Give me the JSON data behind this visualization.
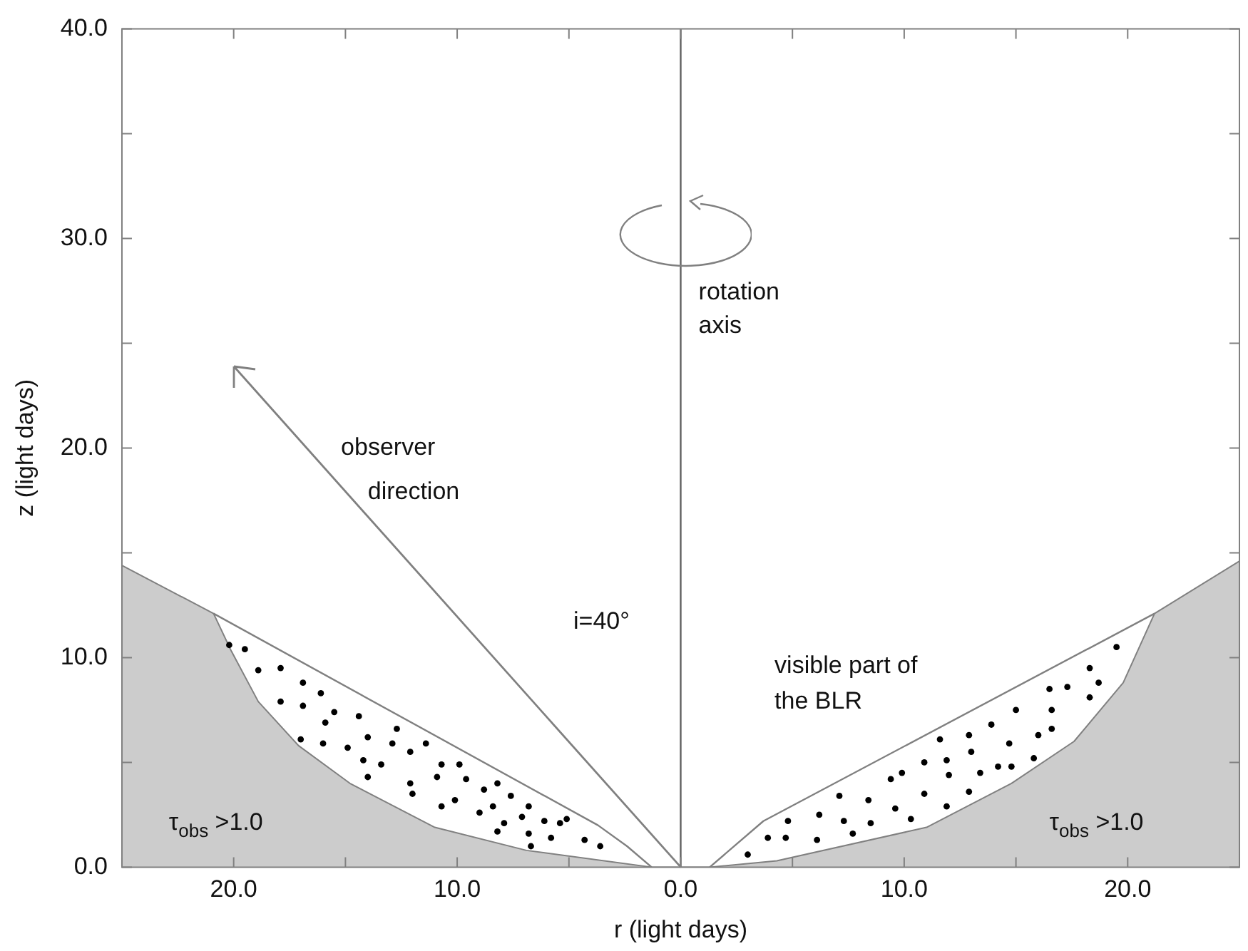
{
  "chart_data": {
    "type": "area",
    "xlabel": "r (light days)",
    "ylabel": "z (light days)",
    "xlim": [
      -25,
      25
    ],
    "ylim": [
      0,
      40
    ],
    "xticks": [
      {
        "value": -25,
        "label": null
      },
      {
        "value": -20,
        "label": "20.0"
      },
      {
        "value": -15,
        "label": null
      },
      {
        "value": -10,
        "label": "10.0"
      },
      {
        "value": -5,
        "label": null
      },
      {
        "value": 0,
        "label": "0.0"
      },
      {
        "value": 5,
        "label": null
      },
      {
        "value": 10,
        "label": "10.0"
      },
      {
        "value": 15,
        "label": null
      },
      {
        "value": 20,
        "label": "20.0"
      },
      {
        "value": 25,
        "label": null
      }
    ],
    "yticks": [
      {
        "value": 0,
        "label": "0.0"
      },
      {
        "value": 5,
        "label": null
      },
      {
        "value": 10,
        "label": "10.0"
      },
      {
        "value": 15,
        "label": null
      },
      {
        "value": 20,
        "label": "20.0"
      },
      {
        "value": 25,
        "label": null
      },
      {
        "value": 30,
        "label": "30.0"
      },
      {
        "value": 35,
        "label": null
      },
      {
        "value": 40,
        "label": "40.0"
      }
    ],
    "grid": false,
    "legend": false,
    "series": [
      {
        "color": "#cccccc",
        "marker": "none",
        "x": [
          -25,
          -20.9,
          -20.1,
          -18.9,
          -17.1,
          -14.8,
          -11.0,
          -6.9,
          -1.3,
          1.3,
          4.3,
          11.0,
          14.8,
          17.6,
          19.8,
          21.2,
          25
        ],
        "values": [
          14.4,
          12.1,
          10.3,
          7.9,
          5.8,
          4.0,
          1.9,
          0.8,
          0,
          0,
          0.3,
          1.9,
          4.0,
          6.0,
          8.8,
          12.1,
          14.6
        ]
      },
      {
        "type": "line",
        "color": "#808080",
        "marker": "none",
        "x": [
          -20.9,
          -3.7,
          -2.4,
          -1.3
        ],
        "values": [
          12.1,
          2.0,
          1.0,
          0
        ]
      },
      {
        "type": "line",
        "color": "#808080",
        "marker": "none",
        "x": [
          1.3,
          3.7,
          21.2
        ],
        "values": [
          0,
          2.2,
          12.1
        ]
      },
      {
        "type": "scatter",
        "color": "#000000",
        "marker": "circle",
        "x": [
          -20.2,
          -19.5,
          -18.9,
          -17.9,
          -16.9,
          -16.1,
          -17.9,
          -16.9,
          -15.5,
          -15.9,
          -14.4,
          -12.7,
          -17.0,
          -16.0,
          -14.9,
          -14.0,
          -12.9,
          -11.4,
          -14.2,
          -13.4,
          -12.1,
          -10.7,
          -9.9,
          -14.0,
          -12.1,
          -10.9,
          -9.6,
          -8.8,
          -8.2,
          -7.6,
          -12.0,
          -10.7,
          -10.1,
          -9.0,
          -8.4,
          -6.8,
          -7.9,
          -7.1,
          -6.1,
          -5.4,
          -5.1,
          -8.2,
          -6.8,
          -5.8,
          -4.3,
          -3.6,
          -6.7
        ],
        "values": [
          10.6,
          10.4,
          9.4,
          9.5,
          8.8,
          8.3,
          7.9,
          7.7,
          7.4,
          6.9,
          7.2,
          6.6,
          6.1,
          5.9,
          5.7,
          6.2,
          5.9,
          5.9,
          5.1,
          4.9,
          5.5,
          4.9,
          4.9,
          4.3,
          4.0,
          4.3,
          4.2,
          3.7,
          4.0,
          3.4,
          3.5,
          2.9,
          3.2,
          2.6,
          2.9,
          2.9,
          2.1,
          2.4,
          2.2,
          2.1,
          2.3,
          1.7,
          1.6,
          1.4,
          1.3,
          1.0,
          1.0
        ]
      },
      {
        "type": "scatter",
        "color": "#000000",
        "marker": "circle",
        "x": [
          19.5,
          18.3,
          16.5,
          17.3,
          18.7,
          18.3,
          15.0,
          16.6,
          13.9,
          12.9,
          16.0,
          16.6,
          11.6,
          14.7,
          13.0,
          10.9,
          11.9,
          15.8,
          9.4,
          9.9,
          12.0,
          13.4,
          14.2,
          14.8,
          10.9,
          12.9,
          7.1,
          8.4,
          9.6,
          10.3,
          11.9,
          4.8,
          6.2,
          7.3,
          8.5,
          3.9,
          4.7,
          6.1,
          7.7,
          3.0
        ],
        "values": [
          10.5,
          9.5,
          8.5,
          8.6,
          8.8,
          8.1,
          7.5,
          7.5,
          6.8,
          6.3,
          6.3,
          6.6,
          6.1,
          5.9,
          5.5,
          5.0,
          5.1,
          5.2,
          4.2,
          4.5,
          4.4,
          4.5,
          4.8,
          4.8,
          3.5,
          3.6,
          3.4,
          3.2,
          2.8,
          2.3,
          2.9,
          2.2,
          2.5,
          2.2,
          2.1,
          1.4,
          1.4,
          1.3,
          1.6,
          0.6
        ]
      }
    ],
    "ref_lines": [
      {
        "axis": "x",
        "value": 0,
        "color": "#606060"
      }
    ],
    "annotations": [
      "observer",
      "direction",
      "rotation",
      "axis",
      "visible part of",
      "the BLR",
      "i=40°",
      "τ$_{obs}$ >1.0",
      "τ$_{obs}$ >1.0"
    ]
  }
}
